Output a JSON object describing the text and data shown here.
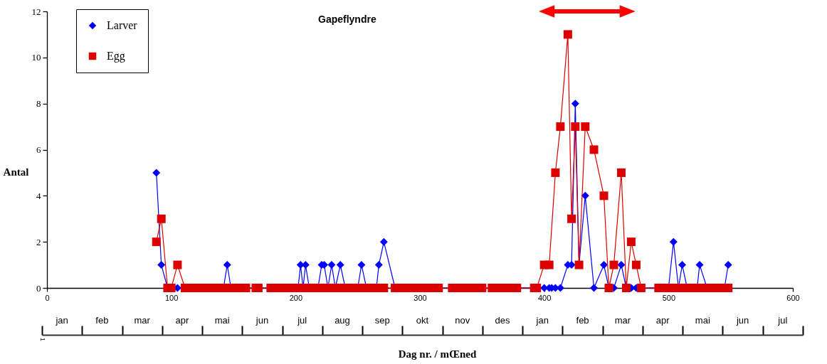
{
  "chart_data": {
    "type": "line",
    "title": "Gapeflyndre",
    "xlabel": "Dag nr. / mŒned",
    "ylabel": "Antal",
    "xlim": [
      0,
      600
    ],
    "xticks": [
      0,
      100,
      200,
      300,
      400,
      500,
      600
    ],
    "ylim": [
      0,
      12
    ],
    "yticks": [
      0,
      2,
      4,
      6,
      8,
      10,
      12
    ],
    "grid": false,
    "legend": "top left",
    "line_style": "solid",
    "x": [
      88,
      92,
      97,
      100,
      105,
      111,
      115,
      119,
      123,
      127,
      131,
      135,
      138,
      142,
      145,
      148,
      152,
      156,
      160,
      168,
      170,
      180,
      184,
      188,
      192,
      196,
      199,
      202,
      204,
      206,
      208,
      211,
      214,
      218,
      221,
      223,
      226,
      229,
      232,
      236,
      240,
      243,
      247,
      250,
      253,
      257,
      261,
      265,
      267,
      271,
      280,
      284,
      288,
      292,
      296,
      300,
      304,
      308,
      312,
      315,
      326,
      330,
      334,
      338,
      342,
      346,
      350,
      358,
      362,
      366,
      370,
      374,
      378,
      392,
      394,
      400,
      404,
      409,
      413,
      419,
      422,
      425,
      428,
      433,
      440,
      448,
      452,
      456,
      462,
      466,
      470,
      474,
      478,
      492,
      496,
      500,
      504,
      508,
      511,
      515,
      519,
      523,
      525,
      531,
      535,
      539,
      543,
      545,
      548
    ],
    "series": [
      {
        "name": "Larver",
        "color": "#0000ff",
        "marker": "diamond",
        "x": [
          88,
          92,
          97,
          100,
          105,
          111,
          115,
          119,
          123,
          127,
          131,
          135,
          138,
          142,
          145,
          148,
          152,
          156,
          160,
          168,
          170,
          180,
          184,
          188,
          192,
          196,
          199,
          202,
          204,
          206,
          208,
          211,
          214,
          218,
          221,
          223,
          226,
          229,
          232,
          236,
          240,
          243,
          247,
          250,
          253,
          257,
          261,
          265,
          267,
          271,
          280,
          284,
          288,
          292,
          296,
          300,
          304,
          308,
          312,
          315,
          326,
          330,
          334,
          338,
          342,
          346,
          350,
          358,
          362,
          366,
          370,
          374,
          378,
          392,
          394,
          400,
          404,
          406,
          409,
          413,
          419,
          422,
          425,
          428,
          433,
          440,
          448,
          452,
          456,
          462,
          466,
          470,
          474,
          478,
          492,
          496,
          500,
          504,
          508,
          511,
          515,
          519,
          523,
          525,
          531,
          535,
          539,
          543,
          545,
          548
        ],
        "values": [
          5,
          1,
          0,
          0,
          0,
          0,
          0,
          0,
          0,
          0,
          0,
          0,
          0,
          0,
          1,
          0,
          0,
          0,
          0,
          0,
          0,
          0,
          0,
          0,
          0,
          0,
          0,
          0,
          1,
          0,
          1,
          0,
          0,
          0,
          1,
          1,
          0,
          1,
          0,
          1,
          0,
          0,
          0,
          0,
          1,
          0,
          0,
          0,
          1,
          2,
          0,
          0,
          0,
          0,
          0,
          0,
          0,
          0,
          0,
          0,
          0,
          0,
          0,
          0,
          0,
          0,
          0,
          0,
          0,
          0,
          0,
          0,
          0,
          0,
          0,
          0,
          0,
          0,
          0,
          0,
          1,
          1,
          8,
          1,
          4,
          0,
          1,
          0,
          0,
          1,
          0,
          0,
          0,
          0,
          0,
          0,
          0,
          2,
          0,
          1,
          0,
          0,
          0,
          1,
          0,
          0,
          0,
          0,
          0,
          1
        ]
      },
      {
        "name": "Egg",
        "color": "#dd0000",
        "marker": "square",
        "values": [
          2,
          3,
          0,
          0,
          1,
          0,
          0,
          0,
          0,
          0,
          0,
          0,
          0,
          0,
          0,
          0,
          0,
          0,
          0,
          0,
          0,
          0,
          0,
          0,
          0,
          0,
          0,
          0,
          0,
          0,
          0,
          0,
          0,
          0,
          0,
          0,
          0,
          0,
          0,
          0,
          0,
          0,
          0,
          0,
          0,
          0,
          0,
          0,
          0,
          0,
          0,
          0,
          0,
          0,
          0,
          0,
          0,
          0,
          0,
          0,
          0,
          0,
          0,
          0,
          0,
          0,
          0,
          0,
          0,
          0,
          0,
          0,
          0,
          0,
          0,
          1,
          1,
          5,
          7,
          11,
          3,
          7,
          1,
          7,
          6,
          4,
          0,
          1,
          5,
          0,
          2,
          1,
          0,
          0,
          0,
          0,
          0,
          0,
          0,
          0,
          0,
          0,
          0,
          0,
          0,
          0,
          0,
          0,
          0
        ]
      },
      {
        "type": "line",
        "color": "#ff0000",
        "marker": "triangle",
        "x": [
          402,
          467
        ],
        "values": [
          12,
          12
        ]
      }
    ],
    "annotations": [
      "jan",
      "feb",
      "mar",
      "apr",
      "mai",
      "jun",
      "jul",
      "aug",
      "sep",
      "okt",
      "nov",
      "des",
      "jan",
      "feb",
      "mar",
      "apr",
      "mai",
      "jun",
      "jul",
      "1"
    ]
  }
}
